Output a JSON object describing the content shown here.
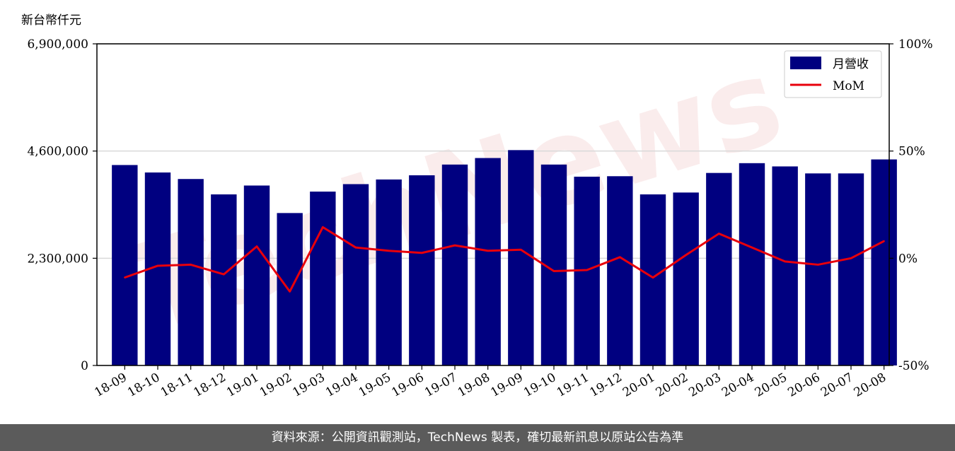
{
  "chart_data": {
    "type": "bar",
    "unit_label": "新台幣仟元",
    "categories": [
      "18-09",
      "18-10",
      "18-11",
      "18-12",
      "19-01",
      "19-02",
      "19-03",
      "19-04",
      "19-05",
      "19-06",
      "19-07",
      "19-08",
      "19-09",
      "19-10",
      "19-11",
      "19-12",
      "20-01",
      "20-02",
      "20-03",
      "20-04",
      "20-05",
      "20-06",
      "20-07",
      "20-08"
    ],
    "series": [
      {
        "name": "月營收",
        "type": "bar",
        "axis": "left",
        "color": "#000080",
        "values": [
          4300000,
          4140000,
          4000000,
          3670000,
          3860000,
          3270000,
          3730000,
          3890000,
          3990000,
          4080000,
          4310000,
          4450000,
          4620000,
          4310000,
          4050000,
          4060000,
          3670000,
          3710000,
          4130000,
          4340000,
          4270000,
          4120000,
          4120000,
          4420000
        ]
      },
      {
        "name": "MoM",
        "type": "line",
        "axis": "right",
        "color": "#e8000b",
        "values": [
          -9,
          -3.5,
          -3,
          -7.5,
          5.5,
          -15.5,
          14.5,
          5,
          3.5,
          2.5,
          6,
          3.5,
          4,
          -6,
          -5.5,
          0.5,
          -9,
          1.5,
          11.5,
          5,
          -1.5,
          -3,
          0,
          8
        ]
      }
    ],
    "y_left": {
      "min": 0,
      "max": 6900000,
      "ticks": [
        "0",
        "2,300,000",
        "4,600,000",
        "6,900,000"
      ]
    },
    "y_right": {
      "min": -50,
      "max": 100,
      "ticks": [
        "-50%",
        "0%",
        "50%",
        "100%"
      ]
    },
    "grid": {
      "horizontal": true
    },
    "legend_position": "top-right"
  },
  "watermark": "TechNews",
  "footer": {
    "text": "資料來源：公開資訊觀測站，TechNews 製表，確切最新訊息以原站公告為準"
  }
}
